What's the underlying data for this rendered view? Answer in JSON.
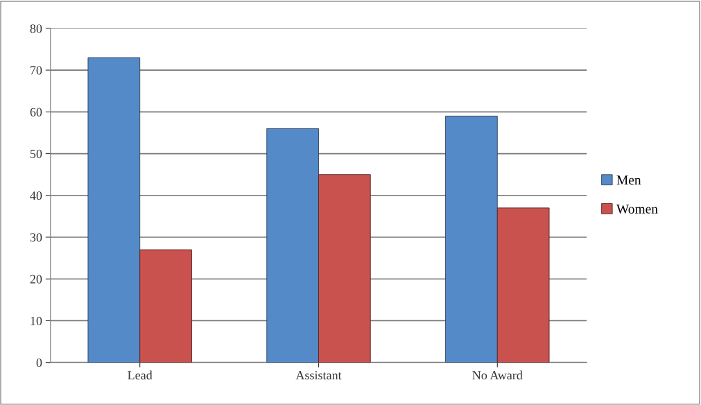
{
  "chart_data": {
    "type": "bar",
    "categories": [
      "Lead",
      "Assistant",
      "No Award"
    ],
    "series": [
      {
        "name": "Men",
        "color": "#558ac8",
        "values": [
          73,
          56,
          59
        ]
      },
      {
        "name": "Women",
        "color": "#c9524f",
        "values": [
          27,
          45,
          37
        ]
      }
    ],
    "ylim": [
      0,
      80
    ],
    "yticks": [
      0,
      10,
      20,
      30,
      40,
      50,
      60,
      70,
      80
    ],
    "grid": "y",
    "legend": "right"
  }
}
